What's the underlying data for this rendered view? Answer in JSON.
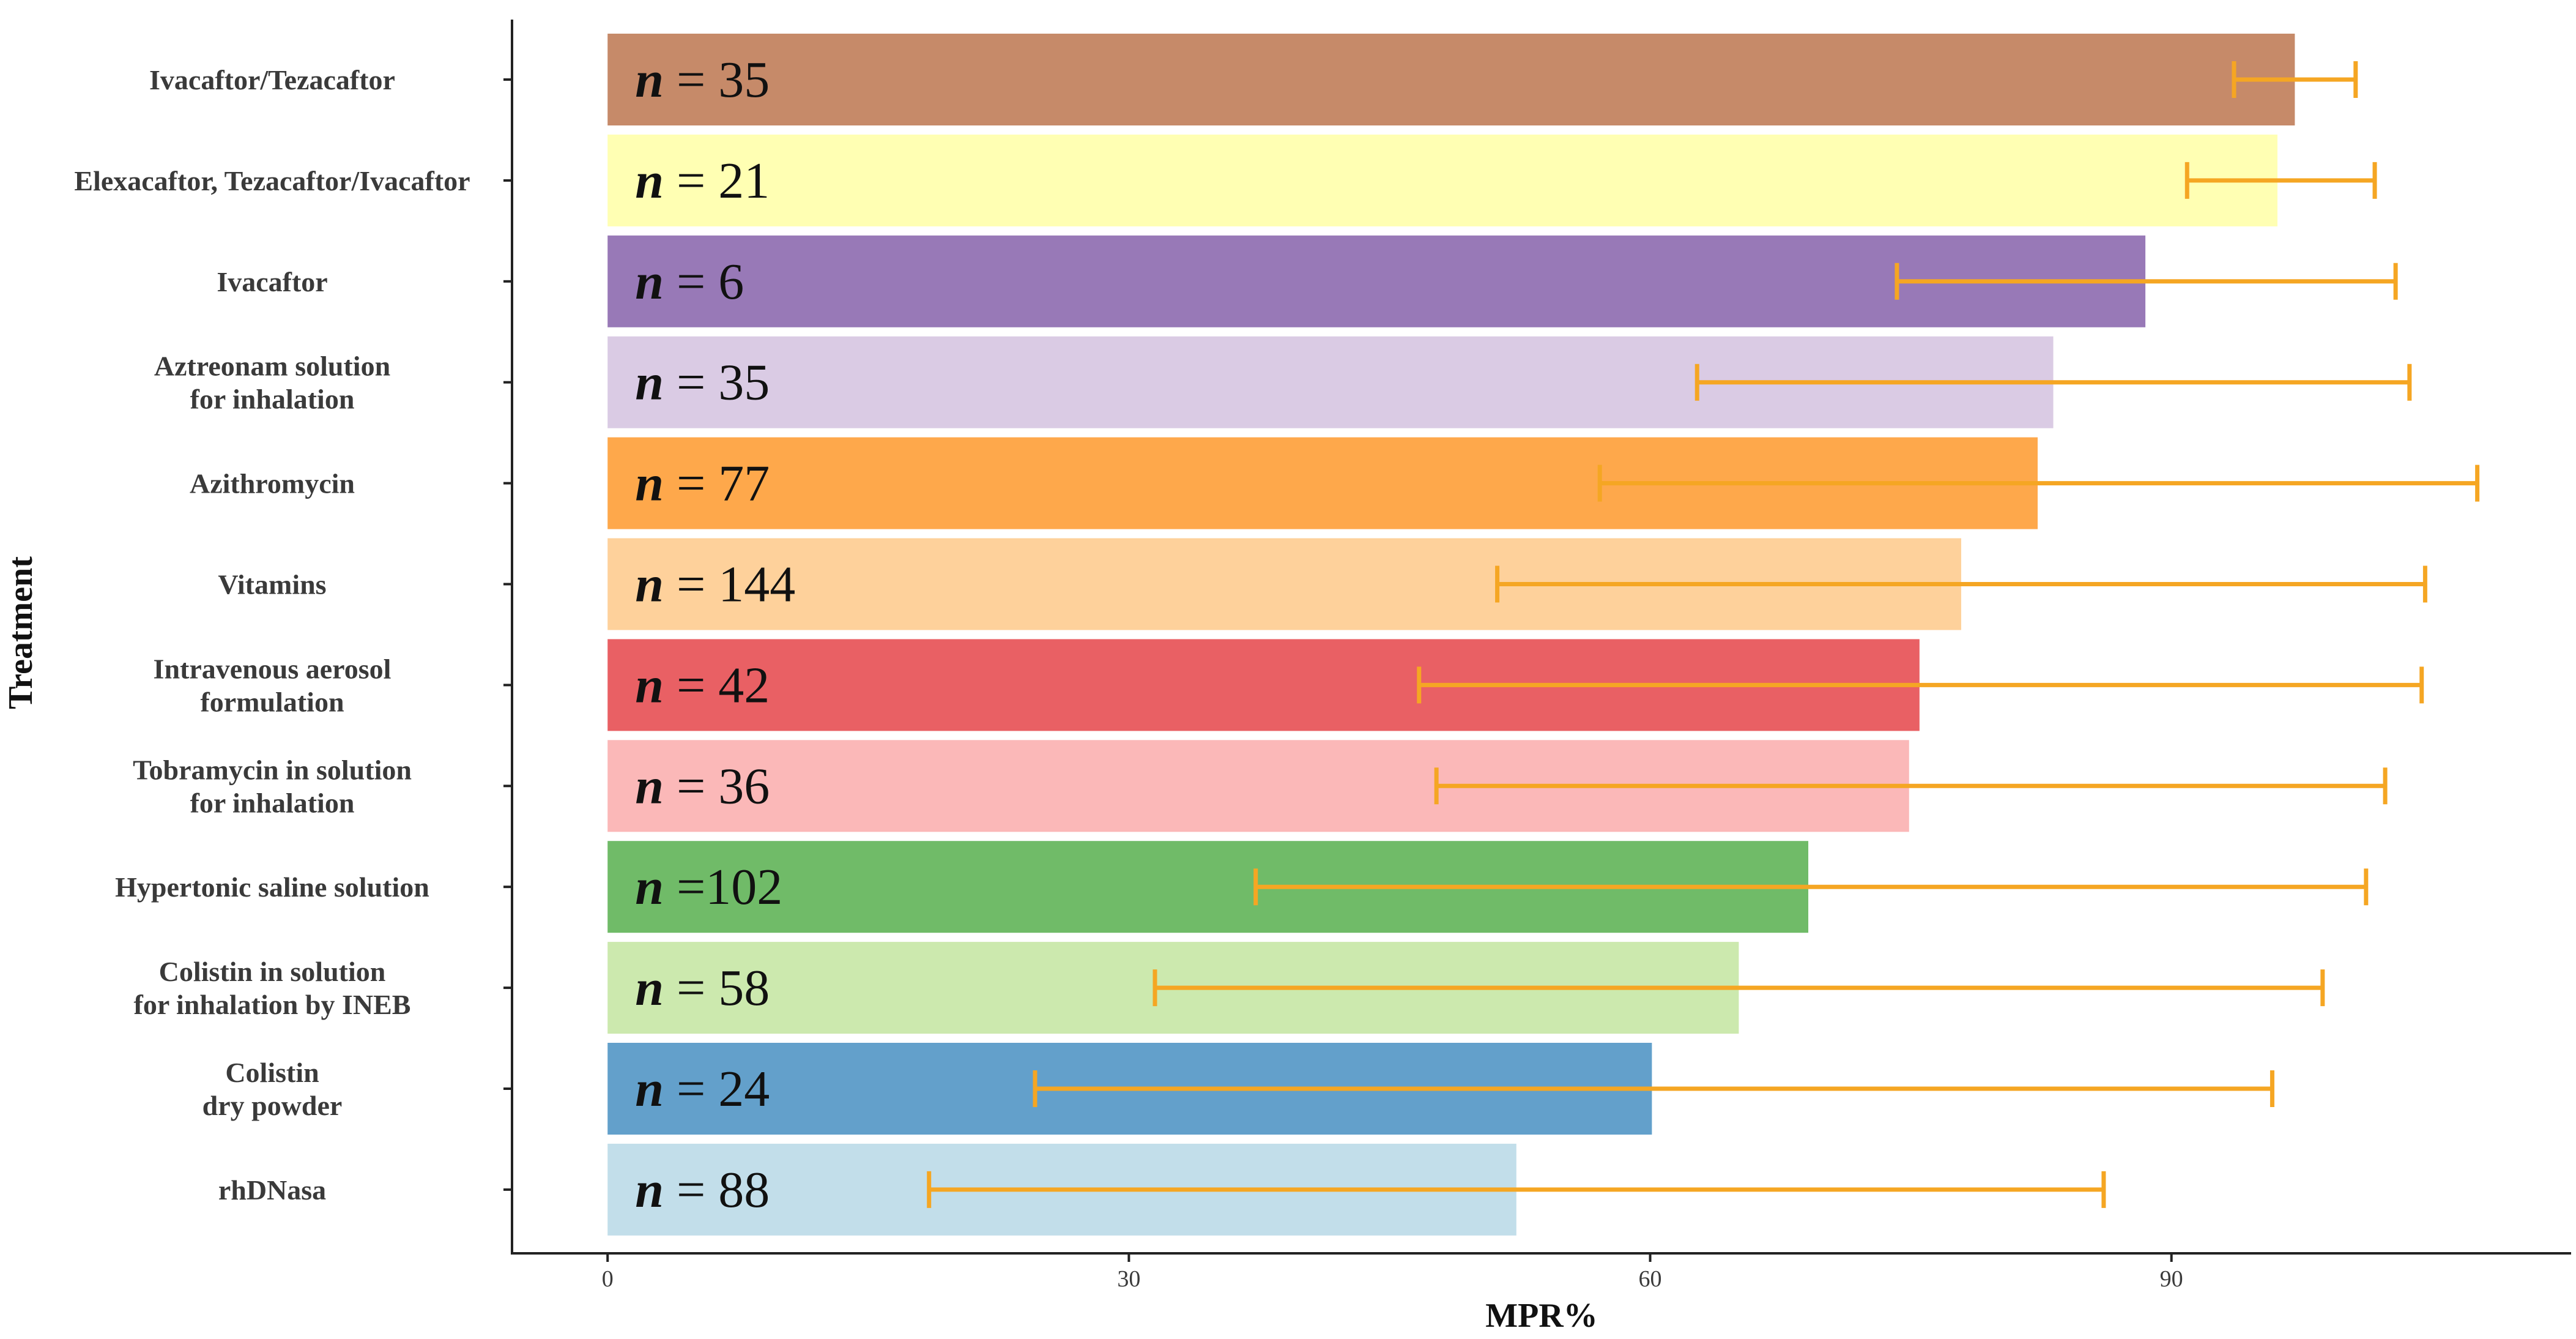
{
  "chart_data": {
    "type": "bar",
    "orientation": "horizontal",
    "xlabel": "MPR%",
    "ylabel": "Treatment",
    "xlim": [
      -5.5,
      113
    ],
    "xticks": [
      0,
      30,
      60,
      90
    ],
    "grid": false,
    "legend": "none",
    "categories": [
      [
        "Ivacaftor/Tezacaftor"
      ],
      [
        "Elexacaftor, Tezacaftor/Ivacaftor"
      ],
      [
        "Ivacaftor"
      ],
      [
        "Aztreonam solution",
        "for inhalation"
      ],
      [
        "Azithromycin"
      ],
      [
        "Vitamins"
      ],
      [
        "Intravenous aerosol",
        "formulation"
      ],
      [
        "Tobramycin in solution",
        "for inhalation"
      ],
      [
        "Hypertonic saline solution"
      ],
      [
        "Colistin in solution",
        "for inhalation by INEB"
      ],
      [
        "Colistin",
        "dry powder"
      ],
      [
        "rhDNasa"
      ]
    ],
    "values": [
      97.1,
      96.1,
      88.5,
      83.2,
      82.3,
      77.9,
      75.5,
      74.9,
      69.1,
      65.1,
      60.1,
      52.3
    ],
    "error_low": [
      93.6,
      90.9,
      74.2,
      62.7,
      57.1,
      51.2,
      46.7,
      47.7,
      37.3,
      31.5,
      24.6,
      18.5
    ],
    "error_high": [
      100.6,
      101.7,
      102.9,
      103.7,
      107.6,
      104.6,
      104.4,
      102.3,
      101.2,
      98.7,
      95.8,
      86.1
    ],
    "n_prefix": "n",
    "n_labels": [
      "= 35",
      "= 21",
      "= 6",
      "= 35",
      "= 77",
      "= 144",
      "= 42",
      "= 36",
      "=102",
      "= 58",
      "= 24",
      "= 88"
    ],
    "colors": [
      "#c68a69",
      "#ffffb3",
      "#9879b7",
      "#dacbe4",
      "#fea84b",
      "#fed19b",
      "#e96064",
      "#fbb8b8",
      "#70bb68",
      "#cce9ae",
      "#63a0cb",
      "#c2deea"
    ],
    "error_color": "#f5a623"
  }
}
